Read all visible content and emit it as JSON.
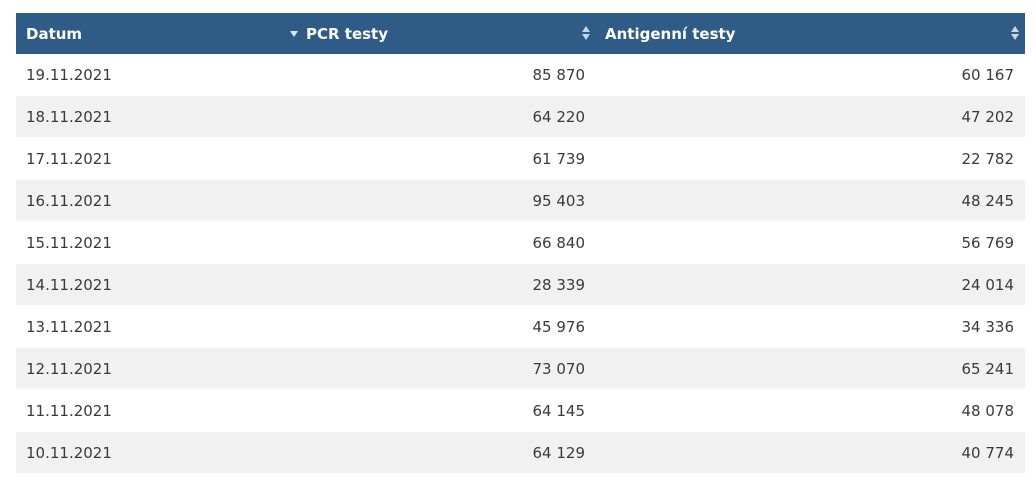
{
  "table": {
    "columns": [
      {
        "label": "Datum",
        "sort": "desc"
      },
      {
        "label": "PCR testy",
        "sort": "none"
      },
      {
        "label": "Antigenní testy",
        "sort": "none"
      }
    ],
    "rows": [
      {
        "date": "19.11.2021",
        "pcr": "85 870",
        "antigen": "60 167"
      },
      {
        "date": "18.11.2021",
        "pcr": "64 220",
        "antigen": "47 202"
      },
      {
        "date": "17.11.2021",
        "pcr": "61 739",
        "antigen": "22 782"
      },
      {
        "date": "16.11.2021",
        "pcr": "95 403",
        "antigen": "48 245"
      },
      {
        "date": "15.11.2021",
        "pcr": "66 840",
        "antigen": "56 769"
      },
      {
        "date": "14.11.2021",
        "pcr": "28 339",
        "antigen": "24 014"
      },
      {
        "date": "13.11.2021",
        "pcr": "45 976",
        "antigen": "34 336"
      },
      {
        "date": "12.11.2021",
        "pcr": "73 070",
        "antigen": "65 241"
      },
      {
        "date": "11.11.2021",
        "pcr": "64 145",
        "antigen": "48 078"
      },
      {
        "date": "10.11.2021",
        "pcr": "64 129",
        "antigen": "40 774"
      }
    ]
  },
  "colors": {
    "header_bg": "#2f5b87",
    "header_text": "#ffffff",
    "row_alt_bg": "#f1f1f1"
  },
  "icons": {
    "sort_desc": "triangle-down",
    "sort_both": "sort-arrows"
  }
}
